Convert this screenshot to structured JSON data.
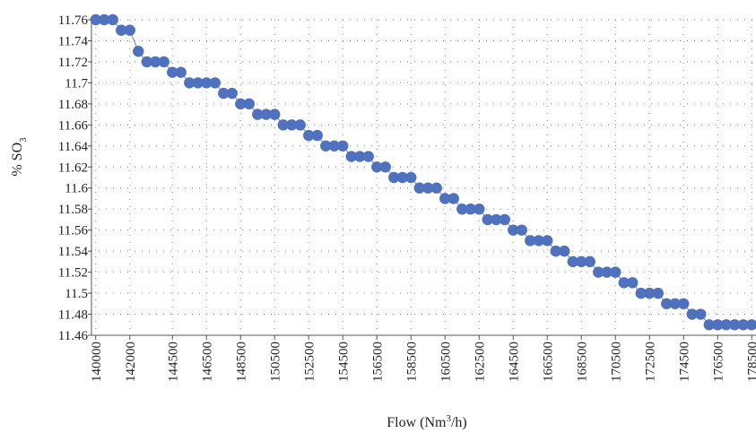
{
  "chart_data": {
    "type": "scatter",
    "xlabel_main": "Flow (Nm",
    "xlabel_sup": "3",
    "xlabel_tail": "/h)",
    "ylabel_main": "% SO",
    "ylabel_sub": "3",
    "ylim": [
      11.46,
      11.76
    ],
    "xlim": [
      139750,
      178750
    ],
    "grid": true,
    "marker_color": "#4f71be",
    "line_color": "#7f95c7",
    "y_ticks": [
      "11.76",
      "11.74",
      "11.72",
      "11.7",
      "11.68",
      "11.66",
      "11.64",
      "11.62",
      "11.6",
      "11.58",
      "11.56",
      "11.54",
      "11.52",
      "11.5",
      "11.48",
      "11.46"
    ],
    "x_ticks": [
      "140000",
      "142000",
      "144500",
      "146500",
      "148500",
      "150500",
      "152500",
      "154500",
      "156500",
      "158500",
      "160500",
      "162500",
      "164500",
      "166500",
      "168500",
      "170500",
      "172500",
      "174500",
      "176500",
      "178500"
    ],
    "x": [
      140000,
      140500,
      141000,
      141500,
      142000,
      142500,
      143000,
      143500,
      144000,
      144500,
      145000,
      145500,
      146000,
      146500,
      147000,
      147500,
      148000,
      148500,
      149000,
      149500,
      150000,
      150500,
      151000,
      151500,
      152000,
      152500,
      153000,
      153500,
      154000,
      154500,
      155000,
      155500,
      156000,
      156500,
      157000,
      157500,
      158000,
      158500,
      159000,
      159500,
      160000,
      160500,
      161000,
      161500,
      162000,
      162500,
      163000,
      163500,
      164000,
      164500,
      165000,
      165500,
      166000,
      166500,
      167000,
      167500,
      168000,
      168500,
      169000,
      169500,
      170000,
      170500,
      171000,
      171500,
      172000,
      172500,
      173000,
      173500,
      174000,
      174500,
      175000,
      175500,
      176000,
      176500,
      177000,
      177500,
      178000,
      178500,
      179000
    ],
    "y": [
      11.76,
      11.76,
      11.76,
      11.75,
      11.75,
      11.73,
      11.72,
      11.72,
      11.72,
      11.71,
      11.71,
      11.7,
      11.7,
      11.7,
      11.7,
      11.69,
      11.69,
      11.68,
      11.68,
      11.67,
      11.67,
      11.67,
      11.66,
      11.66,
      11.66,
      11.65,
      11.65,
      11.64,
      11.64,
      11.64,
      11.63,
      11.63,
      11.63,
      11.62,
      11.62,
      11.61,
      11.61,
      11.61,
      11.6,
      11.6,
      11.6,
      11.59,
      11.59,
      11.58,
      11.58,
      11.58,
      11.57,
      11.57,
      11.57,
      11.56,
      11.56,
      11.55,
      11.55,
      11.55,
      11.54,
      11.54,
      11.53,
      11.53,
      11.53,
      11.52,
      11.52,
      11.52,
      11.51,
      11.51,
      11.5,
      11.5,
      11.5,
      11.49,
      11.49,
      11.49,
      11.48,
      11.48,
      11.47,
      11.47,
      11.47,
      11.47,
      11.47,
      11.47,
      11.47
    ]
  }
}
